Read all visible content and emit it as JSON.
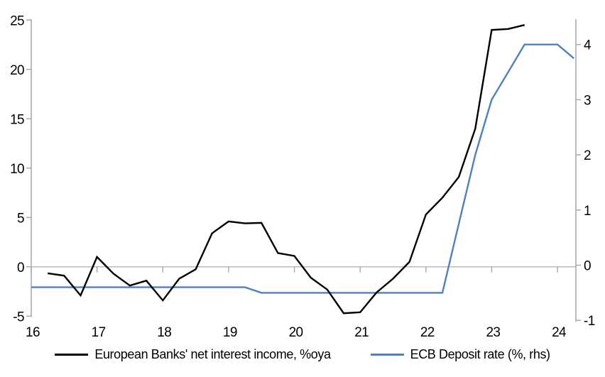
{
  "chart_data": {
    "type": "line",
    "title": "",
    "legend_position": "bottom",
    "grid": false,
    "x_axis": {
      "ticks": [
        16,
        17,
        18,
        19,
        20,
        21,
        22,
        23,
        24
      ],
      "tick_labels": [
        "16",
        "17",
        "18",
        "19",
        "20",
        "21",
        "22",
        "23",
        "24"
      ],
      "range": [
        16,
        24.28
      ],
      "label": ""
    },
    "left_axis": {
      "ticks": [
        -5,
        0,
        5,
        10,
        15,
        20,
        25
      ],
      "range": [
        -5.48,
        25.09
      ],
      "label": ""
    },
    "right_axis": {
      "ticks": [
        -1,
        0,
        1,
        2,
        3,
        4
      ],
      "range": [
        -1.01,
        4.46
      ],
      "label": ""
    },
    "zero_line_at": 0,
    "series": [
      {
        "name": "European Banks' net interest income, %oya",
        "axis": "left",
        "color": "#000000",
        "x": [
          16.25,
          16.5,
          16.75,
          17,
          17.25,
          17.5,
          17.75,
          18,
          18.25,
          18.5,
          18.75,
          19,
          19.25,
          19.5,
          19.75,
          20,
          20.25,
          20.5,
          20.75,
          21,
          21.25,
          21.5,
          21.75,
          22,
          22.25,
          22.5,
          22.75,
          23,
          23.25,
          23.5
        ],
        "values": [
          -0.65,
          -0.9,
          -2.9,
          1.0,
          -0.7,
          -1.9,
          -1.4,
          -3.4,
          -1.2,
          -0.25,
          3.4,
          4.6,
          4.4,
          4.45,
          1.4,
          1.1,
          -1.1,
          -2.3,
          -4.7,
          -4.6,
          -2.6,
          -1.2,
          0.5,
          5.3,
          7.0,
          9.1,
          14.0,
          24.0,
          24.1,
          24.5
        ]
      },
      {
        "name": "ECB Deposit rate (%, rhs)",
        "axis": "right",
        "color": "#4F81BD",
        "x": [
          16,
          16.25,
          16.5,
          16.75,
          17,
          17.25,
          17.5,
          17.75,
          18,
          18.25,
          18.5,
          18.75,
          19,
          19.25,
          19.5,
          19.75,
          20,
          20.25,
          20.5,
          20.75,
          21,
          21.25,
          21.5,
          21.75,
          22,
          22.25,
          22.5,
          22.75,
          23,
          23.25,
          23.5,
          23.75,
          24,
          24.25
        ],
        "values": [
          -0.4,
          -0.4,
          -0.4,
          -0.4,
          -0.4,
          -0.4,
          -0.4,
          -0.4,
          -0.4,
          -0.4,
          -0.4,
          -0.4,
          -0.4,
          -0.4,
          -0.5,
          -0.5,
          -0.5,
          -0.5,
          -0.5,
          -0.5,
          -0.5,
          -0.5,
          -0.5,
          -0.5,
          -0.5,
          -0.5,
          0.75,
          2.0,
          3.0,
          3.5,
          4.0,
          4.0,
          4.0,
          3.75
        ]
      }
    ],
    "colors": {
      "axis": "#a6a6a6",
      "zero_line": "#b3b3b3",
      "text": "#000000",
      "series_black": "#000000",
      "series_blue": "#4F81BD"
    }
  }
}
